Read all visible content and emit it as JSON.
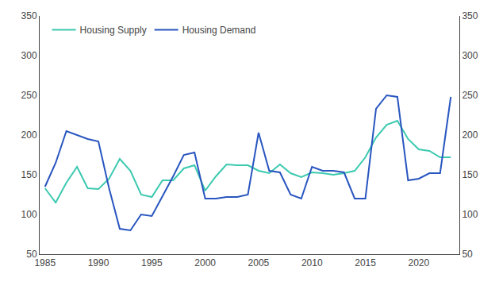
{
  "chart_data": {
    "type": "line",
    "x": [
      1985,
      1986,
      1987,
      1988,
      1989,
      1990,
      1991,
      1992,
      1993,
      1994,
      1995,
      1996,
      1997,
      1998,
      1999,
      2000,
      2001,
      2002,
      2003,
      2004,
      2005,
      2006,
      2007,
      2008,
      2009,
      2010,
      2011,
      2012,
      2013,
      2014,
      2015,
      2016,
      2017,
      2018,
      2019,
      2020,
      2021,
      2022,
      2023
    ],
    "series": [
      {
        "name": "Housing Supply",
        "color": "#3cc9b0",
        "values": [
          133,
          115,
          140,
          160,
          133,
          132,
          145,
          170,
          155,
          125,
          122,
          143,
          143,
          158,
          162,
          130,
          148,
          163,
          162,
          162,
          155,
          152,
          163,
          152,
          147,
          153,
          152,
          150,
          152,
          155,
          172,
          197,
          213,
          218,
          195,
          182,
          180,
          172,
          172
        ]
      },
      {
        "name": "Housing Demand",
        "color": "#2855bf",
        "values": [
          135,
          165,
          205,
          200,
          195,
          192,
          133,
          82,
          80,
          100,
          98,
          123,
          148,
          175,
          178,
          120,
          120,
          122,
          122,
          125,
          203,
          155,
          153,
          125,
          120,
          160,
          155,
          155,
          153,
          120,
          120,
          233,
          250,
          248,
          143,
          145,
          152,
          152,
          248
        ]
      }
    ],
    "xlim": [
      1984.5,
      2023.8
    ],
    "xticks": [
      1985,
      1990,
      1995,
      2000,
      2005,
      2010,
      2015,
      2020
    ],
    "ylim": [
      50,
      350
    ],
    "yticks": [
      50,
      100,
      150,
      200,
      250,
      300,
      350
    ],
    "y2lim": [
      50,
      350
    ],
    "y2ticks": [
      50,
      100,
      150,
      200,
      250,
      300,
      350
    ],
    "grid": false,
    "legend": "upper left"
  }
}
